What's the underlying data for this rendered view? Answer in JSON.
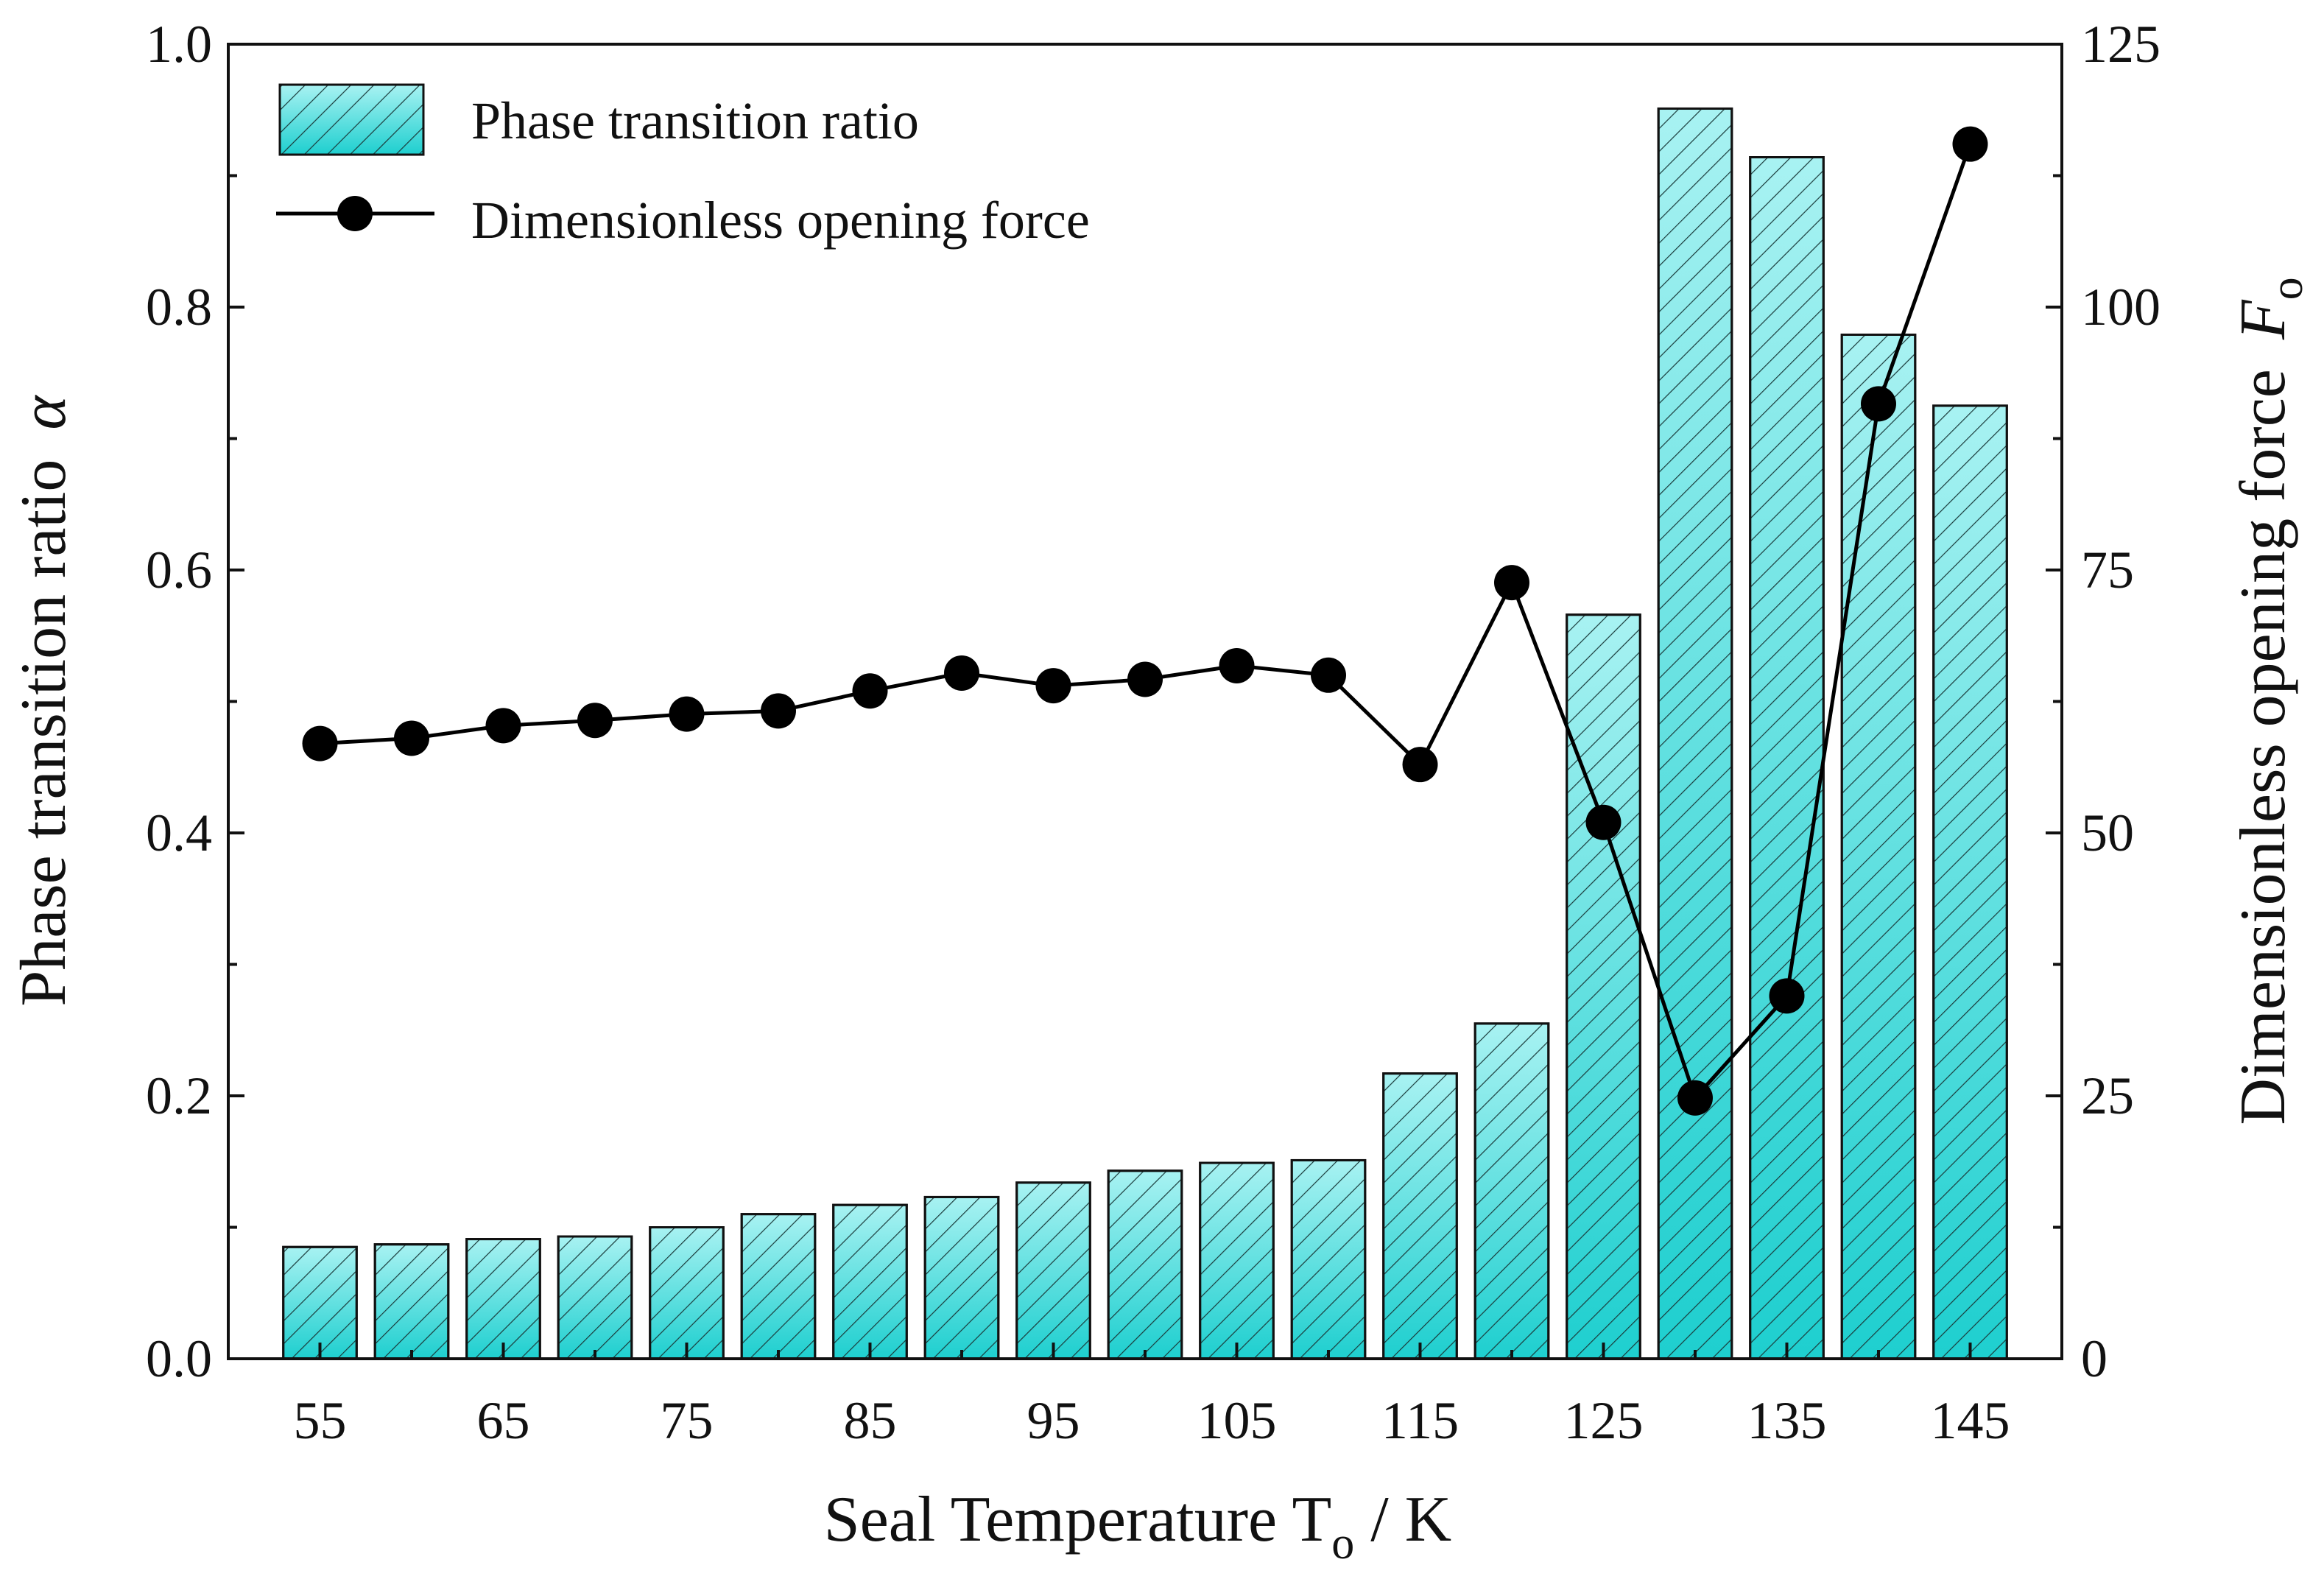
{
  "chart_data": {
    "type": "bar+line",
    "x_values": [
      55,
      60,
      65,
      70,
      75,
      80,
      85,
      90,
      95,
      100,
      105,
      110,
      115,
      120,
      125,
      130,
      135,
      140,
      145
    ],
    "x_tick_labels": [
      "55",
      "65",
      "75",
      "85",
      "95",
      "105",
      "115",
      "125",
      "135",
      "145"
    ],
    "series": [
      {
        "name": "Phase transition ratio",
        "type": "bar",
        "axis": "left",
        "values": [
          0.085,
          0.087,
          0.091,
          0.093,
          0.1,
          0.11,
          0.117,
          0.123,
          0.134,
          0.143,
          0.149,
          0.151,
          0.217,
          0.255,
          0.566,
          0.951,
          0.914,
          0.779,
          0.725
        ]
      },
      {
        "name": "Dimensionless opening force",
        "type": "line",
        "axis": "right",
        "values": [
          58.5,
          59.0,
          60.2,
          60.7,
          61.3,
          61.6,
          63.5,
          65.2,
          64.0,
          64.6,
          65.9,
          65.0,
          56.5,
          73.8,
          51.0,
          24.8,
          34.5,
          90.8,
          115.5
        ]
      }
    ],
    "xlabel": "Seal Temperature  T",
    "xlabel_subscript": "o",
    "xlabel_unit": " / K",
    "ylabel_left": "Phase transition ratio",
    "ylabel_left_symbol": "α",
    "ylabel_right": "Dimensionless opening force",
    "ylabel_right_symbol": "F",
    "ylabel_right_subscript": "o",
    "ylim_left": [
      0,
      1.0
    ],
    "ylim_right": [
      0,
      125
    ],
    "xlim": [
      50,
      150
    ],
    "left_ticks": [
      "0.0",
      "0.2",
      "0.4",
      "0.6",
      "0.8",
      "1.0"
    ],
    "right_ticks": [
      "0",
      "25",
      "50",
      "75",
      "100",
      "125"
    ],
    "legend_position": "top-left",
    "colors": {
      "bar_top": "#a8f2f2",
      "bar_bottom": "#1ecfcf",
      "hatch": "#1a3a3a",
      "line": "#000000",
      "marker": "#000000"
    }
  }
}
